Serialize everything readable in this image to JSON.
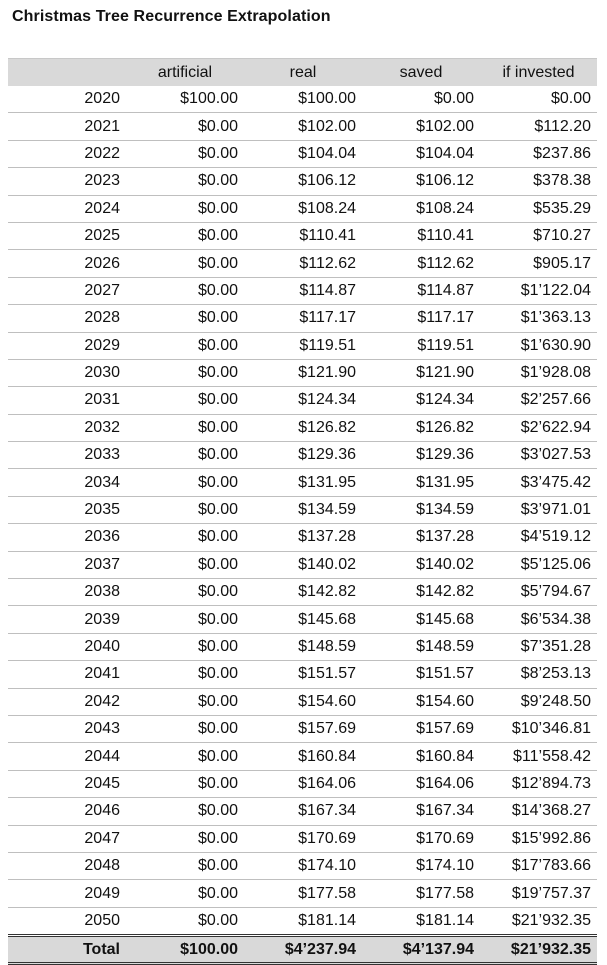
{
  "title": "Christmas Tree Recurrence Extrapolation",
  "columns": {
    "year": "",
    "artificial": "artificial",
    "real": "real",
    "saved": "saved",
    "invested": "if invested"
  },
  "rows": [
    {
      "year": "2020",
      "artificial": "$100.00",
      "real": "$100.00",
      "saved": "$0.00",
      "invested": "$0.00"
    },
    {
      "year": "2021",
      "artificial": "$0.00",
      "real": "$102.00",
      "saved": "$102.00",
      "invested": "$112.20"
    },
    {
      "year": "2022",
      "artificial": "$0.00",
      "real": "$104.04",
      "saved": "$104.04",
      "invested": "$237.86"
    },
    {
      "year": "2023",
      "artificial": "$0.00",
      "real": "$106.12",
      "saved": "$106.12",
      "invested": "$378.38"
    },
    {
      "year": "2024",
      "artificial": "$0.00",
      "real": "$108.24",
      "saved": "$108.24",
      "invested": "$535.29"
    },
    {
      "year": "2025",
      "artificial": "$0.00",
      "real": "$110.41",
      "saved": "$110.41",
      "invested": "$710.27"
    },
    {
      "year": "2026",
      "artificial": "$0.00",
      "real": "$112.62",
      "saved": "$112.62",
      "invested": "$905.17"
    },
    {
      "year": "2027",
      "artificial": "$0.00",
      "real": "$114.87",
      "saved": "$114.87",
      "invested": "$1’122.04"
    },
    {
      "year": "2028",
      "artificial": "$0.00",
      "real": "$117.17",
      "saved": "$117.17",
      "invested": "$1’363.13"
    },
    {
      "year": "2029",
      "artificial": "$0.00",
      "real": "$119.51",
      "saved": "$119.51",
      "invested": "$1’630.90"
    },
    {
      "year": "2030",
      "artificial": "$0.00",
      "real": "$121.90",
      "saved": "$121.90",
      "invested": "$1’928.08"
    },
    {
      "year": "2031",
      "artificial": "$0.00",
      "real": "$124.34",
      "saved": "$124.34",
      "invested": "$2’257.66"
    },
    {
      "year": "2032",
      "artificial": "$0.00",
      "real": "$126.82",
      "saved": "$126.82",
      "invested": "$2’622.94"
    },
    {
      "year": "2033",
      "artificial": "$0.00",
      "real": "$129.36",
      "saved": "$129.36",
      "invested": "$3’027.53"
    },
    {
      "year": "2034",
      "artificial": "$0.00",
      "real": "$131.95",
      "saved": "$131.95",
      "invested": "$3’475.42"
    },
    {
      "year": "2035",
      "artificial": "$0.00",
      "real": "$134.59",
      "saved": "$134.59",
      "invested": "$3’971.01"
    },
    {
      "year": "2036",
      "artificial": "$0.00",
      "real": "$137.28",
      "saved": "$137.28",
      "invested": "$4’519.12"
    },
    {
      "year": "2037",
      "artificial": "$0.00",
      "real": "$140.02",
      "saved": "$140.02",
      "invested": "$5’125.06"
    },
    {
      "year": "2038",
      "artificial": "$0.00",
      "real": "$142.82",
      "saved": "$142.82",
      "invested": "$5’794.67"
    },
    {
      "year": "2039",
      "artificial": "$0.00",
      "real": "$145.68",
      "saved": "$145.68",
      "invested": "$6’534.38"
    },
    {
      "year": "2040",
      "artificial": "$0.00",
      "real": "$148.59",
      "saved": "$148.59",
      "invested": "$7’351.28"
    },
    {
      "year": "2041",
      "artificial": "$0.00",
      "real": "$151.57",
      "saved": "$151.57",
      "invested": "$8’253.13"
    },
    {
      "year": "2042",
      "artificial": "$0.00",
      "real": "$154.60",
      "saved": "$154.60",
      "invested": "$9’248.50"
    },
    {
      "year": "2043",
      "artificial": "$0.00",
      "real": "$157.69",
      "saved": "$157.69",
      "invested": "$10’346.81"
    },
    {
      "year": "2044",
      "artificial": "$0.00",
      "real": "$160.84",
      "saved": "$160.84",
      "invested": "$11’558.42"
    },
    {
      "year": "2045",
      "artificial": "$0.00",
      "real": "$164.06",
      "saved": "$164.06",
      "invested": "$12’894.73"
    },
    {
      "year": "2046",
      "artificial": "$0.00",
      "real": "$167.34",
      "saved": "$167.34",
      "invested": "$14’368.27"
    },
    {
      "year": "2047",
      "artificial": "$0.00",
      "real": "$170.69",
      "saved": "$170.69",
      "invested": "$15’992.86"
    },
    {
      "year": "2048",
      "artificial": "$0.00",
      "real": "$174.10",
      "saved": "$174.10",
      "invested": "$17’783.66"
    },
    {
      "year": "2049",
      "artificial": "$0.00",
      "real": "$177.58",
      "saved": "$177.58",
      "invested": "$19’757.37"
    },
    {
      "year": "2050",
      "artificial": "$0.00",
      "real": "$181.14",
      "saved": "$181.14",
      "invested": "$21’932.35"
    }
  ],
  "total": {
    "label": "Total",
    "artificial": "$100.00",
    "real": "$4’237.94",
    "saved": "$4’137.94",
    "invested": "$21’932.35"
  },
  "colors": {
    "header_bg": "#d9d9d9",
    "row_border": "#bfbfbf"
  }
}
